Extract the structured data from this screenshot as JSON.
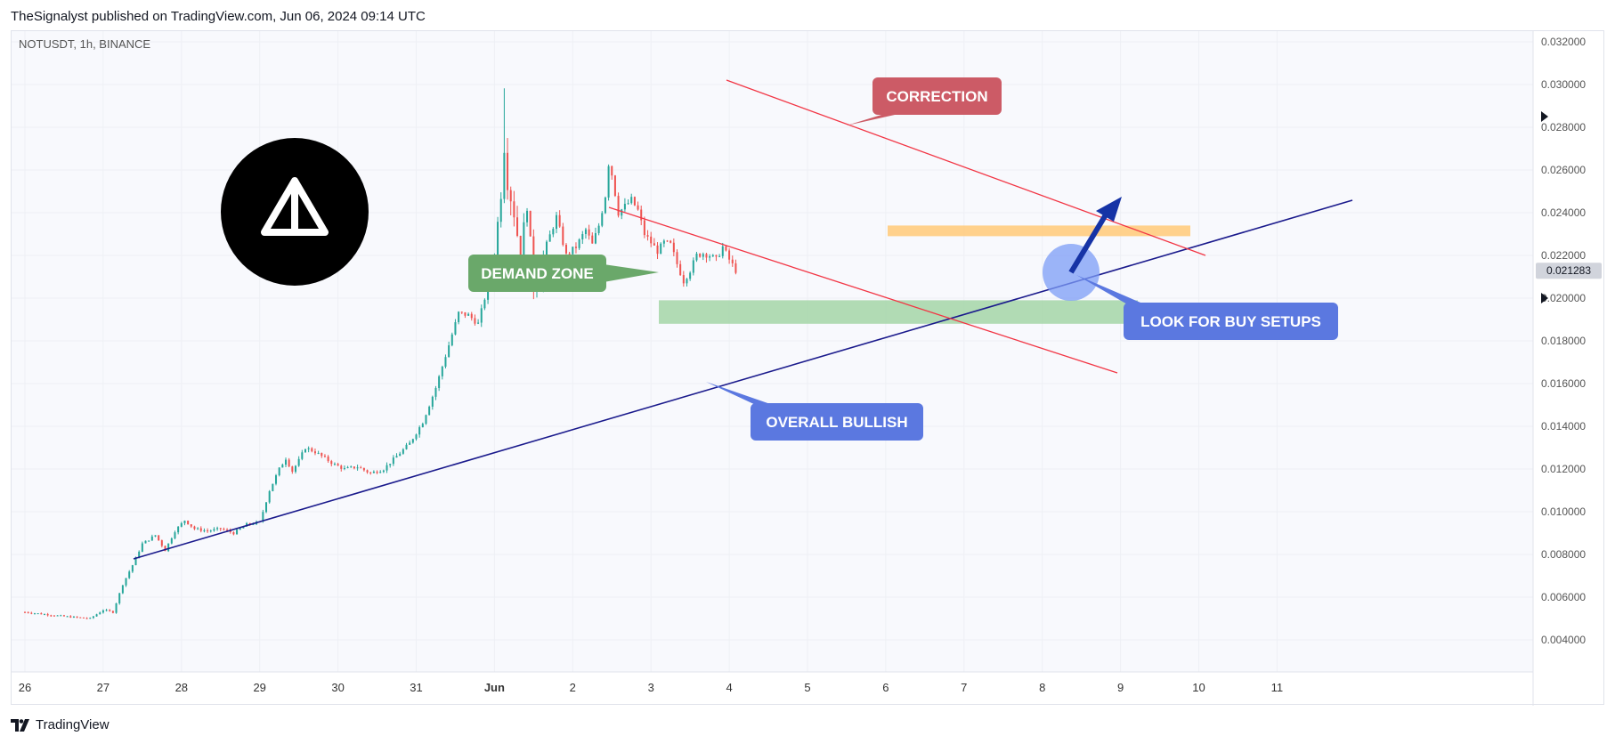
{
  "header": {
    "published_line": "TheSignalyst published on TradingView.com, Jun 06, 2024 09:14 UTC"
  },
  "footer": {
    "brand": "TradingView",
    "brand_icon": "tradingview-logo-icon"
  },
  "chart_data": {
    "type": "candlestick",
    "symbol_label": "NOTUSDT, 1h, BINANCE",
    "symbol_logo_icon": "notcoin-logo-icon",
    "y_axis": {
      "ticks": [
        "0.032000",
        "0.030000",
        "0.028000",
        "0.026000",
        "0.024000",
        "0.022000",
        "0.020000",
        "0.018000",
        "0.016000",
        "0.014000",
        "0.012000",
        "0.010000",
        "0.008000",
        "0.006000",
        "0.004000"
      ],
      "range": [
        0.0025,
        0.0325
      ],
      "last_price": "0.021283"
    },
    "x_axis": {
      "ticks": [
        "26",
        "27",
        "28",
        "29",
        "30",
        "31",
        "Jun",
        "2",
        "3",
        "4",
        "5",
        "6",
        "7",
        "8",
        "9",
        "10",
        "11"
      ]
    },
    "price_path": [
      [
        0,
        0.0053
      ],
      [
        12,
        0.0051
      ],
      [
        20,
        0.005
      ],
      [
        24,
        0.0054
      ],
      [
        27,
        0.0053
      ],
      [
        30,
        0.0066
      ],
      [
        33,
        0.0075
      ],
      [
        36,
        0.0085
      ],
      [
        40,
        0.0089
      ],
      [
        43,
        0.0082
      ],
      [
        46,
        0.0091
      ],
      [
        49,
        0.0096
      ],
      [
        52,
        0.0092
      ],
      [
        56,
        0.0091
      ],
      [
        60,
        0.0092
      ],
      [
        64,
        0.009
      ],
      [
        68,
        0.0094
      ],
      [
        72,
        0.0095
      ],
      [
        75,
        0.011
      ],
      [
        78,
        0.012
      ],
      [
        80,
        0.0125
      ],
      [
        82,
        0.0119
      ],
      [
        84,
        0.0124
      ],
      [
        86,
        0.013
      ],
      [
        89,
        0.0128
      ],
      [
        92,
        0.0125
      ],
      [
        95,
        0.0122
      ],
      [
        98,
        0.012
      ],
      [
        102,
        0.0121
      ],
      [
        106,
        0.0118
      ],
      [
        110,
        0.012
      ],
      [
        114,
        0.0126
      ],
      [
        118,
        0.0132
      ],
      [
        122,
        0.0142
      ],
      [
        126,
        0.0158
      ],
      [
        130,
        0.0178
      ],
      [
        133,
        0.0193
      ],
      [
        136,
        0.0192
      ],
      [
        139,
        0.0188
      ],
      [
        142,
        0.0206
      ],
      [
        144,
        0.022
      ],
      [
        146,
        0.025
      ],
      [
        147,
        0.0292
      ],
      [
        148,
        0.0255
      ],
      [
        150,
        0.024
      ],
      [
        152,
        0.022
      ],
      [
        154,
        0.0245
      ],
      [
        156,
        0.0205
      ],
      [
        158,
        0.021
      ],
      [
        160,
        0.0225
      ],
      [
        163,
        0.0238
      ],
      [
        166,
        0.022
      ],
      [
        169,
        0.0224
      ],
      [
        172,
        0.0232
      ],
      [
        174,
        0.0225
      ],
      [
        176,
        0.0234
      ],
      [
        178,
        0.0248
      ],
      [
        179,
        0.0263
      ],
      [
        180,
        0.0258
      ],
      [
        182,
        0.024
      ],
      [
        184,
        0.0243
      ],
      [
        186,
        0.0246
      ],
      [
        188,
        0.0241
      ],
      [
        190,
        0.023
      ],
      [
        192,
        0.0226
      ],
      [
        194,
        0.0222
      ],
      [
        196,
        0.0226
      ],
      [
        198,
        0.0225
      ],
      [
        200,
        0.0216
      ],
      [
        202,
        0.0208
      ],
      [
        204,
        0.0213
      ],
      [
        206,
        0.022
      ],
      [
        208,
        0.0221
      ],
      [
        210,
        0.022
      ],
      [
        212,
        0.0218
      ],
      [
        214,
        0.0224
      ],
      [
        216,
        0.0218
      ],
      [
        218,
        0.0213
      ]
    ],
    "annotations": {
      "correction": "CORRECTION",
      "demand_zone": "DEMAND ZONE",
      "look_for_buy": "LOOK FOR BUY SETUPS",
      "overall_bullish": "OVERALL BULLISH"
    },
    "zones": {
      "demand": {
        "y_top": 0.0199,
        "y_bottom": 0.0188,
        "color": "#a5d6a7"
      },
      "resistance": {
        "y_top": 0.0234,
        "y_bottom": 0.0229,
        "color": "#ffcc80"
      }
    },
    "colors": {
      "bull": "#26a69a",
      "bear": "#ef5350",
      "trendline": "#1a1a8c",
      "channel": "#f23645",
      "correction_label": "#cc5b66",
      "demand_label": "#6aa86a",
      "blue_label": "#5b78e0",
      "arrow": "#1633a6",
      "circle": "#7c9cf5"
    }
  }
}
